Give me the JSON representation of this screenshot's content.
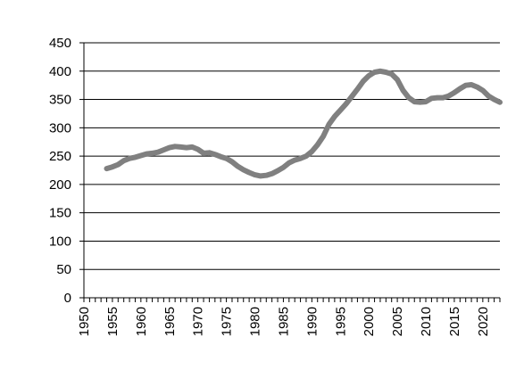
{
  "chart_data": {
    "type": "line",
    "title": "",
    "xlabel": "",
    "ylabel": "",
    "xlim": [
      1950,
      2023
    ],
    "ylim": [
      0,
      450
    ],
    "x_ticks": [
      1950,
      1955,
      1960,
      1965,
      1970,
      1975,
      1980,
      1985,
      1990,
      1995,
      2000,
      2005,
      2010,
      2015,
      2020
    ],
    "y_ticks": [
      0,
      50,
      100,
      150,
      200,
      250,
      300,
      350,
      400,
      450
    ],
    "grid": true,
    "legend": "none",
    "series": [
      {
        "color": "#808080",
        "x": [
          1954,
          1955,
          1956,
          1957,
          1958,
          1959,
          1960,
          1961,
          1962,
          1963,
          1964,
          1965,
          1966,
          1967,
          1968,
          1969,
          1970,
          1971,
          1972,
          1973,
          1974,
          1975,
          1976,
          1977,
          1978,
          1979,
          1980,
          1981,
          1982,
          1983,
          1984,
          1985,
          1986,
          1987,
          1988,
          1989,
          1990,
          1991,
          1992,
          1993,
          1994,
          1995,
          1996,
          1997,
          1998,
          1999,
          2000,
          2001,
          2002,
          2003,
          2004,
          2005,
          2006,
          2007,
          2008,
          2009,
          2010,
          2011,
          2012,
          2013,
          2014,
          2015,
          2016,
          2017,
          2018,
          2019,
          2020,
          2021,
          2022,
          2023
        ],
        "y": [
          228,
          231,
          235,
          242,
          246,
          248,
          251,
          254,
          255,
          257,
          261,
          265,
          267,
          266,
          265,
          266,
          262,
          255,
          256,
          253,
          249,
          246,
          240,
          232,
          226,
          221,
          217,
          215,
          216,
          219,
          224,
          230,
          238,
          243,
          246,
          250,
          258,
          270,
          285,
          306,
          320,
          331,
          342,
          355,
          368,
          382,
          392,
          398,
          400,
          398,
          395,
          385,
          366,
          353,
          346,
          345,
          346,
          352,
          353,
          353,
          356,
          362,
          369,
          375,
          376,
          372,
          366,
          356,
          350,
          345
        ]
      }
    ]
  }
}
